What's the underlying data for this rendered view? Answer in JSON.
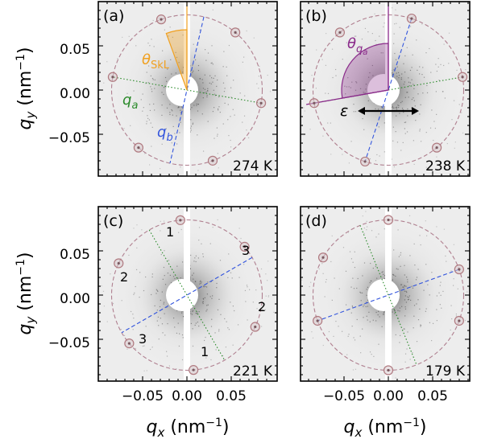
{
  "figure": {
    "x_axis_label": "q_x (nm^-1)",
    "y_axis_label": "q_y (nm^-1)",
    "x_tick_labels": [
      "−0.05",
      "0.00",
      "0.05"
    ],
    "y_tick_labels": [
      "0.05",
      "0.00",
      "−0.05"
    ],
    "ring_radius": 0.085,
    "colors": {
      "ring": "#b08090",
      "spot": "#b07a80",
      "q_a": "#2a8a2a",
      "q_b": "#3355dd",
      "theta_skl": "#f0a020",
      "theta_qa": "#8a2a8a",
      "background": "#ececec",
      "beamstop": "#ffffff"
    },
    "panels": [
      {
        "id": "a",
        "letter": "(a)",
        "temperature": "274 K",
        "qa_label": "q",
        "qa_sub": "a",
        "qb_label": "q",
        "qb_sub": "b",
        "theta_label": "θ",
        "theta_sub": "SkL",
        "qa_angle_deg": -10,
        "qb_angle_deg": 77,
        "spot_angles_deg": [
          -10,
          50,
          110,
          170,
          230,
          290
        ]
      },
      {
        "id": "b",
        "letter": "(b)",
        "temperature": "238 K",
        "theta_label": "θ",
        "theta_sub": "q",
        "theta_subsub": "a",
        "strain_label": "ε",
        "qa_angle_deg": 10,
        "qb_angle_deg": 72,
        "spot_angles_deg": [
          10,
          72,
          130,
          190,
          252,
          310
        ]
      },
      {
        "id": "c",
        "letter": "(c)",
        "temperature": "221 K",
        "spot_numbers": [
          "1",
          "3",
          "2",
          "2",
          "3",
          "1"
        ],
        "qa_angle_deg": 120,
        "qb_angle_deg": 30,
        "spot_angles_deg": [
          95,
          40,
          155,
          335,
          220,
          275
        ]
      },
      {
        "id": "d",
        "letter": "(d)",
        "temperature": "179 K",
        "qa_angle_deg": 112,
        "qb_angle_deg": 20,
        "spot_angles_deg": [
          90,
          20,
          150,
          200,
          270,
          340
        ]
      }
    ]
  }
}
